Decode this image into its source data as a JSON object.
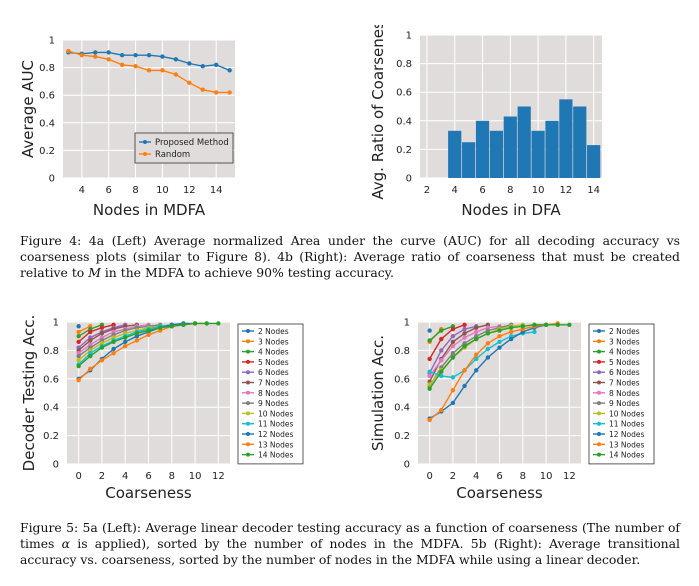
{
  "figure4": {
    "caption_parts": [
      "Figure 4: 4a (Left) Average normalized Area under the curve (AUC) for all decoding accuracy vs coarseness plots (similar to Figure 8). 4b (Right): Average ratio of coarseness that must be created relative to ",
      "M",
      " in the MDFA to achieve 90% testing accuracy."
    ]
  },
  "figure5": {
    "caption_parts": [
      "Figure 5: 5a (Left): Average linear decoder testing accuracy as a function of coarseness (The number of times ",
      "α",
      " is applied), sorted by the number of nodes in the MDFA. 5b (Right): Average transitional accuracy vs. coarseness, sorted by the number of nodes in the MDFA while using a linear decoder."
    ]
  },
  "colors": {
    "plot_bg": "#e1dcdc",
    "grid": "#ffffff",
    "blue": "#1f77b4",
    "orange": "#ff7f0e",
    "green": "#2ca02c",
    "red": "#d62728",
    "purple": "#9467bd",
    "brown": "#8c564b",
    "pink": "#e377c2",
    "gray": "#7f7f7f",
    "olive": "#bcbd22",
    "cyan": "#17becf"
  },
  "chart_data": [
    {
      "id": "fig4a",
      "type": "line",
      "xlabel": "Nodes in MDFA",
      "ylabel": "Average AUC",
      "xlim": [
        2.6,
        15.4
      ],
      "ylim": [
        0,
        1
      ],
      "xticks": [
        4,
        6,
        8,
        10,
        12,
        14
      ],
      "yticks": [
        0,
        0.2,
        0.4,
        0.6,
        0.8,
        1
      ],
      "legend": "lower-right",
      "series": [
        {
          "name": "Proposed Method",
          "color": "#1f77b4",
          "x": [
            3,
            4,
            5,
            6,
            7,
            8,
            9,
            10,
            11,
            12,
            13,
            14,
            15
          ],
          "y": [
            0.91,
            0.9,
            0.91,
            0.91,
            0.89,
            0.89,
            0.89,
            0.88,
            0.86,
            0.83,
            0.81,
            0.82,
            0.78
          ]
        },
        {
          "name": "Random",
          "color": "#ff7f0e",
          "x": [
            3,
            4,
            5,
            6,
            7,
            8,
            9,
            10,
            11,
            12,
            13,
            14,
            15
          ],
          "y": [
            0.92,
            0.89,
            0.88,
            0.86,
            0.82,
            0.81,
            0.78,
            0.78,
            0.75,
            0.69,
            0.64,
            0.62,
            0.62
          ]
        }
      ]
    },
    {
      "id": "fig4b",
      "type": "bar",
      "xlabel": "Nodes in DFA",
      "ylabel": "Avg. Ratio of Coarseness",
      "xlim": [
        1.5,
        14.6
      ],
      "ylim": [
        0,
        1
      ],
      "xticks": [
        2,
        4,
        6,
        8,
        10,
        12,
        14
      ],
      "yticks": [
        0,
        0.2,
        0.4,
        0.6,
        0.8,
        1
      ],
      "color": "#1f77b4",
      "categories": [
        4,
        5,
        6,
        7,
        8,
        9,
        10,
        11,
        12,
        13,
        14
      ],
      "values": [
        0.33,
        0.25,
        0.4,
        0.33,
        0.43,
        0.5,
        0.33,
        0.4,
        0.55,
        0.5,
        0.23
      ]
    },
    {
      "id": "fig5a",
      "type": "line",
      "xlabel": "Coarseness",
      "ylabel": "Decoder Testing Acc.",
      "xlim": [
        -1,
        13
      ],
      "ylim": [
        0,
        1
      ],
      "xticks": [
        0,
        2,
        4,
        6,
        8,
        10,
        12
      ],
      "yticks": [
        0,
        0.2,
        0.4,
        0.6,
        0.8,
        1
      ],
      "legend": "right-outside",
      "series": [
        {
          "name": "2 Nodes",
          "color": "#1f77b4",
          "x": [
            0
          ],
          "y": [
            0.97
          ]
        },
        {
          "name": "3 Nodes",
          "color": "#ff7f0e",
          "x": [
            0,
            1
          ],
          "y": [
            0.93,
            0.97
          ]
        },
        {
          "name": "4 Nodes",
          "color": "#2ca02c",
          "x": [
            0,
            1,
            2
          ],
          "y": [
            0.9,
            0.95,
            0.98
          ]
        },
        {
          "name": "5 Nodes",
          "color": "#d62728",
          "x": [
            0,
            1,
            2,
            3
          ],
          "y": [
            0.86,
            0.93,
            0.96,
            0.98
          ]
        },
        {
          "name": "6 Nodes",
          "color": "#9467bd",
          "x": [
            0,
            1,
            2,
            3,
            4
          ],
          "y": [
            0.82,
            0.89,
            0.93,
            0.96,
            0.98
          ]
        },
        {
          "name": "7 Nodes",
          "color": "#8c564b",
          "x": [
            0,
            1,
            2,
            3,
            4,
            5
          ],
          "y": [
            0.8,
            0.87,
            0.92,
            0.95,
            0.97,
            0.98
          ]
        },
        {
          "name": "8 Nodes",
          "color": "#e377c2",
          "x": [
            0,
            1,
            2,
            3,
            4,
            5,
            6
          ],
          "y": [
            0.78,
            0.84,
            0.89,
            0.93,
            0.95,
            0.97,
            0.98
          ]
        },
        {
          "name": "9 Nodes",
          "color": "#7f7f7f",
          "x": [
            0,
            1,
            2,
            3,
            4,
            5,
            6,
            7
          ],
          "y": [
            0.76,
            0.82,
            0.87,
            0.91,
            0.94,
            0.96,
            0.97,
            0.98
          ]
        },
        {
          "name": "10 Nodes",
          "color": "#bcbd22",
          "x": [
            0,
            1,
            2,
            3,
            4,
            5,
            6,
            7,
            8
          ],
          "y": [
            0.73,
            0.8,
            0.85,
            0.89,
            0.92,
            0.94,
            0.96,
            0.97,
            0.98
          ]
        },
        {
          "name": "11 Nodes",
          "color": "#17becf",
          "x": [
            0,
            1,
            2,
            3,
            4,
            5,
            6,
            7,
            8,
            9
          ],
          "y": [
            0.7,
            0.78,
            0.83,
            0.87,
            0.9,
            0.93,
            0.95,
            0.97,
            0.98,
            0.99
          ]
        },
        {
          "name": "12 Nodes",
          "color": "#1f77b4",
          "x": [
            0,
            1,
            2,
            3,
            4,
            5,
            6,
            7,
            8,
            9,
            10
          ],
          "y": [
            0.6,
            0.66,
            0.74,
            0.81,
            0.86,
            0.9,
            0.93,
            0.96,
            0.98,
            0.99,
            0.99
          ]
        },
        {
          "name": "13 Nodes",
          "color": "#ff7f0e",
          "x": [
            0,
            1,
            2,
            3,
            4,
            5,
            6,
            7,
            8,
            9,
            10,
            11
          ],
          "y": [
            0.59,
            0.67,
            0.73,
            0.78,
            0.83,
            0.87,
            0.91,
            0.94,
            0.97,
            0.98,
            0.99,
            0.99
          ]
        },
        {
          "name": "14 Nodes",
          "color": "#2ca02c",
          "x": [
            0,
            1,
            2,
            3,
            4,
            5,
            6,
            7,
            8,
            9,
            10,
            11,
            12
          ],
          "y": [
            0.69,
            0.76,
            0.82,
            0.86,
            0.89,
            0.92,
            0.94,
            0.96,
            0.97,
            0.98,
            0.99,
            0.99,
            0.99
          ]
        }
      ]
    },
    {
      "id": "fig5b",
      "type": "line",
      "xlabel": "Coarseness",
      "ylabel": "Simulation Acc.",
      "xlim": [
        -1,
        13
      ],
      "ylim": [
        0,
        1
      ],
      "xticks": [
        0,
        2,
        4,
        6,
        8,
        10,
        12
      ],
      "yticks": [
        0,
        0.2,
        0.4,
        0.6,
        0.8,
        1
      ],
      "legend": "right-outside",
      "series": [
        {
          "name": "2 Nodes",
          "color": "#1f77b4",
          "x": [
            0
          ],
          "y": [
            0.94
          ]
        },
        {
          "name": "3 Nodes",
          "color": "#ff7f0e",
          "x": [
            0,
            1
          ],
          "y": [
            0.86,
            0.95
          ]
        },
        {
          "name": "4 Nodes",
          "color": "#2ca02c",
          "x": [
            0,
            1,
            2
          ],
          "y": [
            0.87,
            0.94,
            0.97
          ]
        },
        {
          "name": "5 Nodes",
          "color": "#d62728",
          "x": [
            0,
            1,
            2,
            3
          ],
          "y": [
            0.74,
            0.88,
            0.95,
            0.98
          ]
        },
        {
          "name": "6 Nodes",
          "color": "#9467bd",
          "x": [
            0,
            1,
            2,
            3,
            4
          ],
          "y": [
            0.64,
            0.8,
            0.9,
            0.95,
            0.97
          ]
        },
        {
          "name": "7 Nodes",
          "color": "#8c564b",
          "x": [
            0,
            1,
            2,
            3,
            4,
            5
          ],
          "y": [
            0.58,
            0.74,
            0.86,
            0.92,
            0.96,
            0.98
          ]
        },
        {
          "name": "8 Nodes",
          "color": "#e377c2",
          "x": [
            0,
            1,
            2,
            3,
            4,
            5,
            6
          ],
          "y": [
            0.62,
            0.73,
            0.83,
            0.89,
            0.93,
            0.96,
            0.97
          ]
        },
        {
          "name": "9 Nodes",
          "color": "#7f7f7f",
          "x": [
            0,
            1,
            2,
            3,
            4,
            5,
            6,
            7
          ],
          "y": [
            0.55,
            0.68,
            0.78,
            0.85,
            0.9,
            0.94,
            0.96,
            0.98
          ]
        },
        {
          "name": "10 Nodes",
          "color": "#bcbd22",
          "x": [
            0,
            1,
            2,
            3,
            4,
            5,
            6,
            7,
            8
          ],
          "y": [
            0.56,
            0.66,
            0.75,
            0.82,
            0.88,
            0.92,
            0.95,
            0.97,
            0.98
          ]
        },
        {
          "name": "11 Nodes",
          "color": "#17becf",
          "x": [
            0,
            1,
            2,
            3,
            4,
            5,
            6,
            7,
            8,
            9
          ],
          "y": [
            0.65,
            0.62,
            0.61,
            0.66,
            0.74,
            0.81,
            0.86,
            0.9,
            0.92,
            0.93
          ]
        },
        {
          "name": "12 Nodes",
          "color": "#1f77b4",
          "x": [
            0,
            1,
            2,
            3,
            4,
            5,
            6,
            7,
            8,
            9,
            10
          ],
          "y": [
            0.32,
            0.37,
            0.43,
            0.55,
            0.66,
            0.75,
            0.82,
            0.88,
            0.93,
            0.96,
            0.98
          ]
        },
        {
          "name": "13 Nodes",
          "color": "#ff7f0e",
          "x": [
            0,
            1,
            2,
            3,
            4,
            5,
            6,
            7,
            8,
            9,
            10,
            11
          ],
          "y": [
            0.31,
            0.38,
            0.52,
            0.66,
            0.77,
            0.85,
            0.9,
            0.93,
            0.95,
            0.97,
            0.98,
            0.99
          ]
        },
        {
          "name": "14 Nodes",
          "color": "#2ca02c",
          "x": [
            0,
            1,
            2,
            3,
            4,
            5,
            6,
            7,
            8,
            9,
            10,
            11,
            12
          ],
          "y": [
            0.53,
            0.65,
            0.75,
            0.83,
            0.88,
            0.92,
            0.94,
            0.96,
            0.97,
            0.98,
            0.98,
            0.98,
            0.98
          ]
        }
      ]
    }
  ]
}
